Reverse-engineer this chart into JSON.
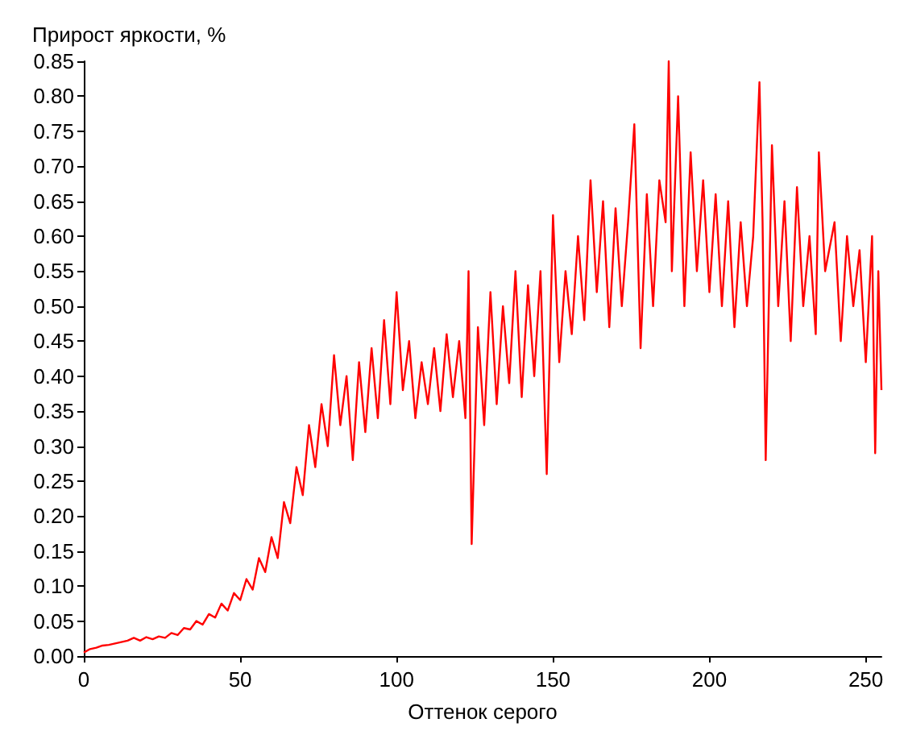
{
  "chart_data": {
    "type": "line",
    "xlabel": "Оттенок серого",
    "ylabel": "Прирост яркости, %",
    "x": [
      0,
      2,
      4,
      6,
      8,
      10,
      12,
      14,
      16,
      18,
      20,
      22,
      24,
      26,
      28,
      30,
      32,
      34,
      36,
      38,
      40,
      42,
      44,
      46,
      48,
      50,
      52,
      54,
      56,
      58,
      60,
      62,
      64,
      66,
      68,
      70,
      72,
      74,
      76,
      78,
      80,
      82,
      84,
      86,
      88,
      90,
      92,
      94,
      96,
      98,
      100,
      102,
      104,
      106,
      108,
      110,
      112,
      114,
      116,
      118,
      120,
      122,
      123,
      124,
      126,
      128,
      130,
      132,
      134,
      136,
      138,
      140,
      142,
      144,
      146,
      148,
      150,
      152,
      154,
      156,
      158,
      160,
      162,
      164,
      166,
      168,
      170,
      172,
      174,
      176,
      178,
      180,
      182,
      184,
      186,
      187,
      188,
      190,
      192,
      194,
      196,
      198,
      200,
      202,
      204,
      206,
      208,
      210,
      212,
      214,
      216,
      217,
      218,
      220,
      222,
      224,
      226,
      228,
      230,
      232,
      234,
      235,
      237,
      240,
      242,
      244,
      246,
      248,
      250,
      252,
      253,
      254,
      255
    ],
    "series": [
      {
        "color": "#ff0000",
        "values": [
          0.005,
          0.01,
          0.012,
          0.015,
          0.016,
          0.018,
          0.02,
          0.022,
          0.026,
          0.022,
          0.027,
          0.024,
          0.028,
          0.026,
          0.033,
          0.03,
          0.04,
          0.038,
          0.05,
          0.045,
          0.06,
          0.055,
          0.075,
          0.065,
          0.09,
          0.08,
          0.11,
          0.095,
          0.14,
          0.12,
          0.17,
          0.14,
          0.22,
          0.19,
          0.27,
          0.23,
          0.33,
          0.27,
          0.36,
          0.3,
          0.43,
          0.33,
          0.4,
          0.28,
          0.42,
          0.32,
          0.44,
          0.34,
          0.48,
          0.36,
          0.52,
          0.38,
          0.45,
          0.34,
          0.42,
          0.36,
          0.44,
          0.35,
          0.46,
          0.37,
          0.45,
          0.34,
          0.55,
          0.16,
          0.47,
          0.33,
          0.52,
          0.36,
          0.5,
          0.39,
          0.55,
          0.37,
          0.53,
          0.4,
          0.55,
          0.26,
          0.63,
          0.42,
          0.55,
          0.46,
          0.6,
          0.48,
          0.68,
          0.52,
          0.65,
          0.47,
          0.64,
          0.5,
          0.62,
          0.76,
          0.44,
          0.66,
          0.5,
          0.68,
          0.62,
          0.85,
          0.55,
          0.8,
          0.5,
          0.72,
          0.55,
          0.68,
          0.52,
          0.66,
          0.5,
          0.65,
          0.47,
          0.62,
          0.5,
          0.6,
          0.82,
          0.62,
          0.28,
          0.73,
          0.5,
          0.65,
          0.45,
          0.67,
          0.5,
          0.6,
          0.46,
          0.72,
          0.55,
          0.62,
          0.45,
          0.6,
          0.5,
          0.58,
          0.42,
          0.6,
          0.29,
          0.55,
          0.38
        ]
      }
    ],
    "xlim": [
      0,
      255
    ],
    "xticks": [
      0,
      50,
      100,
      150,
      200,
      250
    ],
    "ylim": [
      0,
      0.85
    ],
    "yticks": [
      {
        "value": 0,
        "label": "0.00"
      },
      0.05,
      {
        "value": 0.1,
        "label": "0.10"
      },
      0.15,
      {
        "value": 0.2,
        "label": "0.20"
      },
      0.25,
      {
        "value": 0.3,
        "label": "0.30"
      },
      0.35,
      {
        "value": 0.4,
        "label": "0.40"
      },
      0.45,
      {
        "value": 0.5,
        "label": "0.50"
      },
      0.55,
      {
        "value": 0.6,
        "label": "0.60"
      },
      0.65,
      {
        "value": 0.7,
        "label": "0.70"
      },
      0.75,
      {
        "value": 0.8,
        "label": "0.80"
      },
      0.85
    ],
    "marker": "none",
    "line_style": "solid"
  }
}
